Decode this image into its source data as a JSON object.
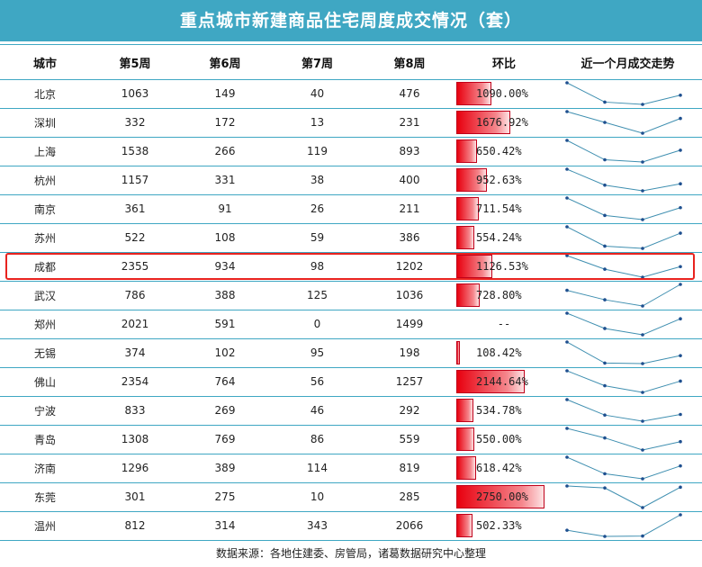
{
  "title": "重点城市新建商品住宅周度成交情况（套）",
  "headers": [
    "城市",
    "第5周",
    "第6周",
    "第7周",
    "第8周",
    "环比",
    "近一个月成交走势"
  ],
  "footer": "数据来源：各地住建委、房管局，诸葛数据研究中心整理",
  "colors": {
    "header_bg": "#3fa7c3",
    "bar_red": "#e8000f",
    "highlight": "#e8231f",
    "sparkline": "#3f8fb0"
  },
  "highlighted_city": "成都",
  "chart_data": {
    "type": "table",
    "columns": [
      "城市",
      "第5周",
      "第6周",
      "第7周",
      "第8周",
      "环比"
    ],
    "rows": [
      {
        "city": "北京",
        "w5": 1063,
        "w6": 149,
        "w7": 40,
        "w8": 476,
        "ratio": 1090.0,
        "ratio_text": "1090.00%"
      },
      {
        "city": "深圳",
        "w5": 332,
        "w6": 172,
        "w7": 13,
        "w8": 231,
        "ratio": 1676.92,
        "ratio_text": "1676.92%"
      },
      {
        "city": "上海",
        "w5": 1538,
        "w6": 266,
        "w7": 119,
        "w8": 893,
        "ratio": 650.42,
        "ratio_text": "650.42%"
      },
      {
        "city": "杭州",
        "w5": 1157,
        "w6": 331,
        "w7": 38,
        "w8": 400,
        "ratio": 952.63,
        "ratio_text": "952.63%"
      },
      {
        "city": "南京",
        "w5": 361,
        "w6": 91,
        "w7": 26,
        "w8": 211,
        "ratio": 711.54,
        "ratio_text": "711.54%"
      },
      {
        "city": "苏州",
        "w5": 522,
        "w6": 108,
        "w7": 59,
        "w8": 386,
        "ratio": 554.24,
        "ratio_text": "554.24%"
      },
      {
        "city": "成都",
        "w5": 2355,
        "w6": 934,
        "w7": 98,
        "w8": 1202,
        "ratio": 1126.53,
        "ratio_text": "1126.53%"
      },
      {
        "city": "武汉",
        "w5": 786,
        "w6": 388,
        "w7": 125,
        "w8": 1036,
        "ratio": 728.8,
        "ratio_text": "728.80%"
      },
      {
        "city": "郑州",
        "w5": 2021,
        "w6": 591,
        "w7": 0,
        "w8": 1499,
        "ratio": null,
        "ratio_text": "--"
      },
      {
        "city": "无锡",
        "w5": 374,
        "w6": 102,
        "w7": 95,
        "w8": 198,
        "ratio": 108.42,
        "ratio_text": "108.42%"
      },
      {
        "city": "佛山",
        "w5": 2354,
        "w6": 764,
        "w7": 56,
        "w8": 1257,
        "ratio": 2144.64,
        "ratio_text": "2144.64%"
      },
      {
        "city": "宁波",
        "w5": 833,
        "w6": 269,
        "w7": 46,
        "w8": 292,
        "ratio": 534.78,
        "ratio_text": "534.78%"
      },
      {
        "city": "青岛",
        "w5": 1308,
        "w6": 769,
        "w7": 86,
        "w8": 559,
        "ratio": 550.0,
        "ratio_text": "550.00%"
      },
      {
        "city": "济南",
        "w5": 1296,
        "w6": 389,
        "w7": 114,
        "w8": 819,
        "ratio": 618.42,
        "ratio_text": "618.42%"
      },
      {
        "city": "东莞",
        "w5": 301,
        "w6": 275,
        "w7": 10,
        "w8": 285,
        "ratio": 2750.0,
        "ratio_text": "2750.00%"
      },
      {
        "city": "温州",
        "w5": 812,
        "w6": 314,
        "w7": 343,
        "w8": 2066,
        "ratio": 502.33,
        "ratio_text": "502.33%"
      }
    ],
    "ratio_bar_max": 2750.0
  }
}
